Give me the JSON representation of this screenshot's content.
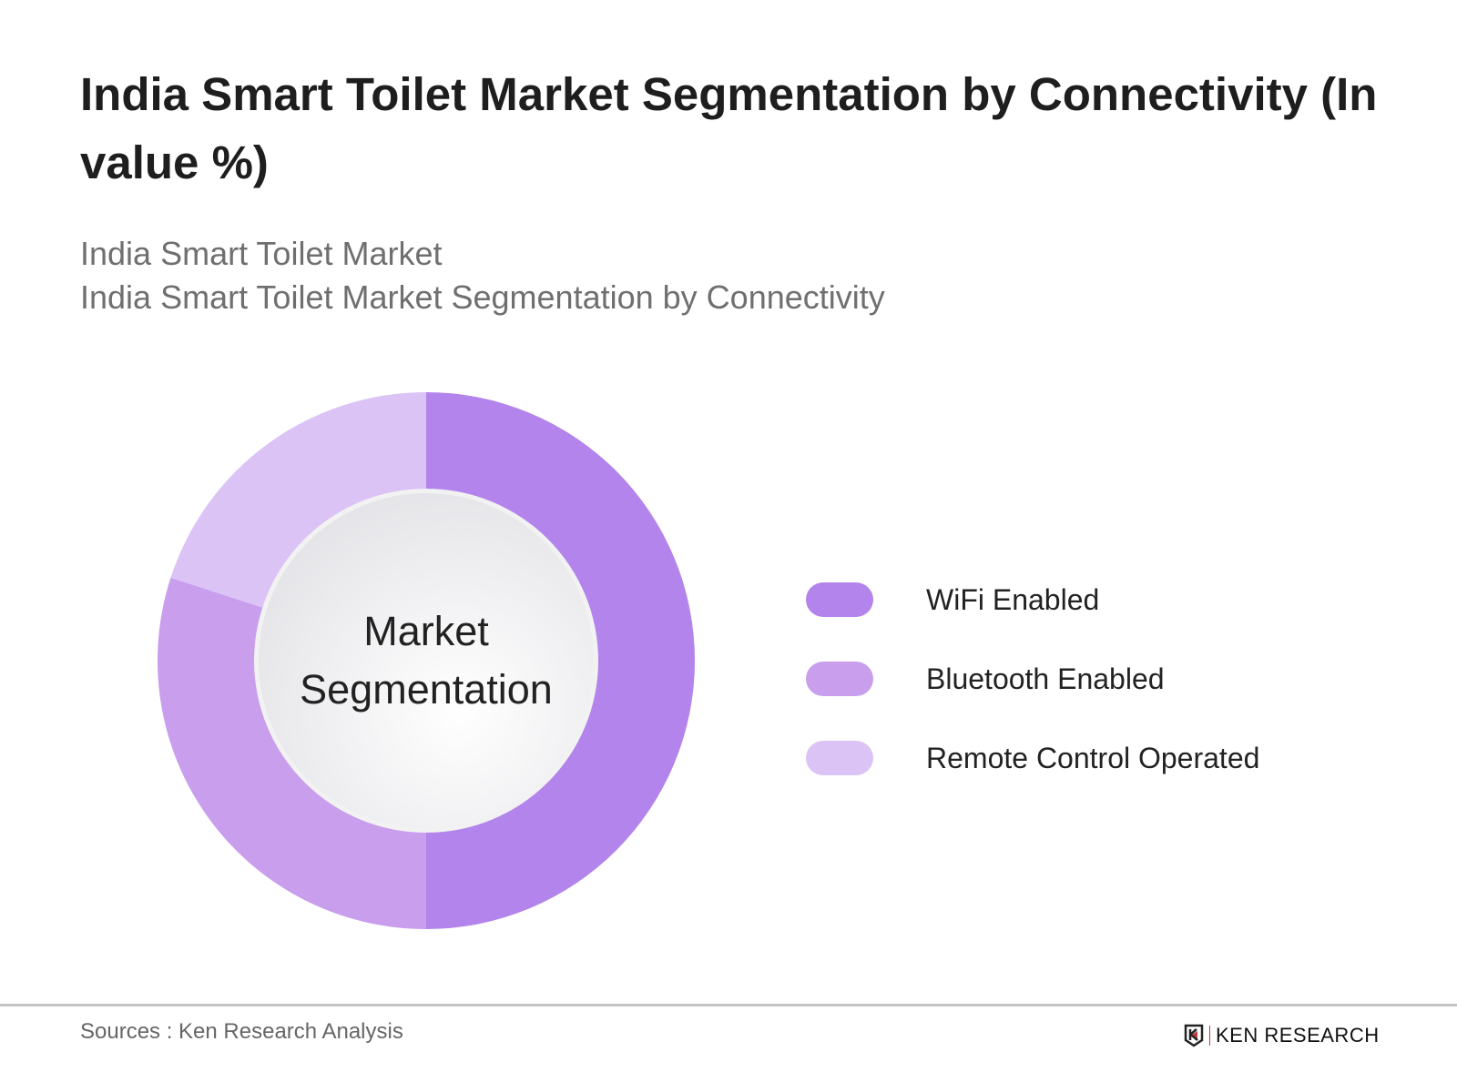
{
  "title": "India Smart Toilet Market Segmentation by Connectivity (In value %)",
  "subtitle_1": "India Smart Toilet Market",
  "subtitle_2": "India Smart Toilet Market Segmentation by Connectivity",
  "chart_data": {
    "type": "pie",
    "variant": "donut",
    "center_label": "Market Segmentation",
    "legend_position": "right",
    "categories": [
      "WiFi Enabled",
      "Bluetooth Enabled",
      "Remote Control Operated"
    ],
    "values": [
      50,
      30,
      20
    ],
    "colors": [
      "#b384eb",
      "#c89eed",
      "#dcc3f6"
    ]
  },
  "footer": {
    "source": "Sources : Ken Research Analysis",
    "logo_text": "KEN RESEARCH"
  }
}
